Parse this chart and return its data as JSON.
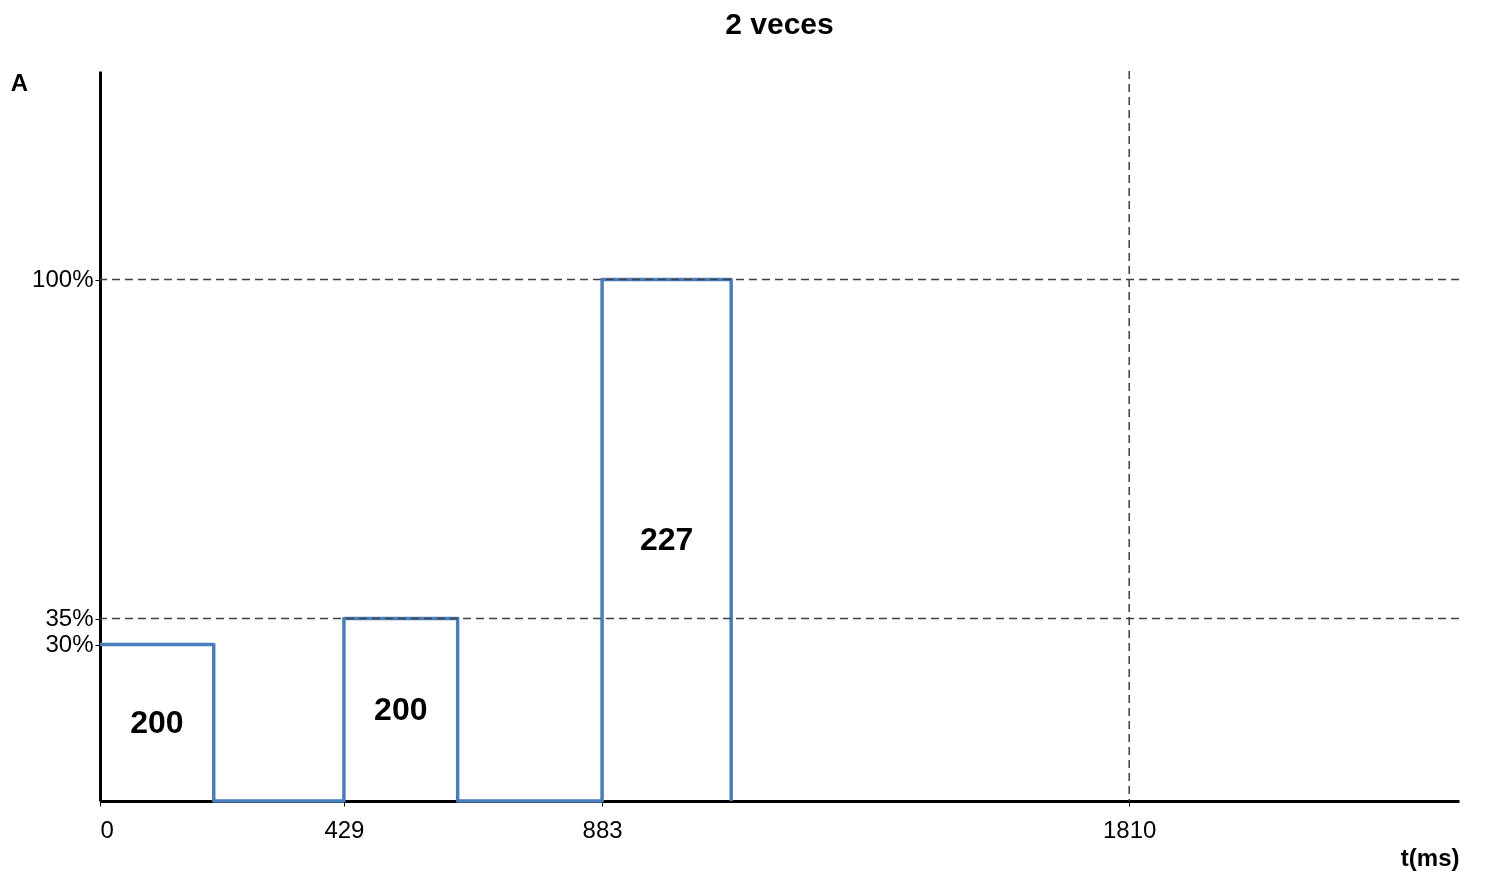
{
  "chart_data": {
    "type": "line",
    "title": "2 veces",
    "xlabel": "t(ms)",
    "ylabel": "A",
    "series": [
      {
        "color": "#4a7ebb",
        "x": [
          0,
          200,
          200,
          429,
          429,
          629,
          629,
          883,
          883,
          1110,
          1110
        ],
        "values": [
          30,
          30,
          0,
          0,
          35,
          35,
          0,
          0,
          100,
          100,
          0
        ]
      }
    ],
    "xlim": [
      0,
      2390
    ],
    "xticks": [
      0,
      429,
      883,
      1810
    ],
    "ylim": [
      0,
      140
    ],
    "yticks": [
      {
        "value": 30,
        "label": "30%"
      },
      {
        "value": 35,
        "label": "35%"
      },
      {
        "value": 100,
        "label": "100%"
      }
    ],
    "ref_lines": [
      {
        "axis": "y",
        "value": 100,
        "line_style": "dashed",
        "color": "#404040"
      },
      {
        "axis": "y",
        "value": 35,
        "line_style": "dashed",
        "color": "#404040"
      },
      {
        "axis": "x",
        "value": 1810,
        "line_style": "dashed",
        "color": "#404040"
      }
    ],
    "annotations": [
      "200",
      "200",
      "227"
    ],
    "marker": "none",
    "line_style": "solid"
  }
}
